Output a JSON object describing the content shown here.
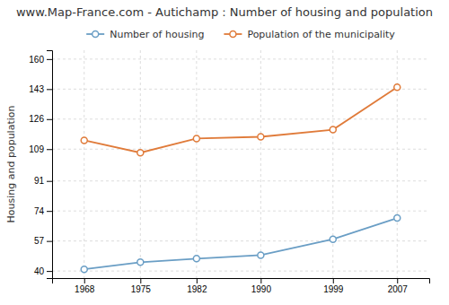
{
  "chart_data": {
    "type": "line",
    "title": "www.Map-France.com - Autichamp : Number of housing and population",
    "ylabel": "Housing and population",
    "x": [
      1968,
      1975,
      1982,
      1990,
      1999,
      2007
    ],
    "series": [
      {
        "name": "Number of housing",
        "color": "#6a9ec5",
        "marker": "circle",
        "line_style": "solid",
        "values": [
          41,
          45,
          47,
          49,
          58,
          70
        ]
      },
      {
        "name": "Population of the municipality",
        "color": "#e07b3a",
        "marker": "circle",
        "line_style": "solid",
        "values": [
          114,
          107,
          115,
          116,
          120,
          144
        ]
      }
    ],
    "xlim": [
      1964,
      2011
    ],
    "xticks": [
      1968,
      1975,
      1982,
      1990,
      1999,
      2007
    ],
    "ylim": [
      36,
      165
    ],
    "yticks": [
      40,
      57,
      74,
      91,
      109,
      126,
      143,
      160
    ],
    "grid": true,
    "legend": "top"
  }
}
